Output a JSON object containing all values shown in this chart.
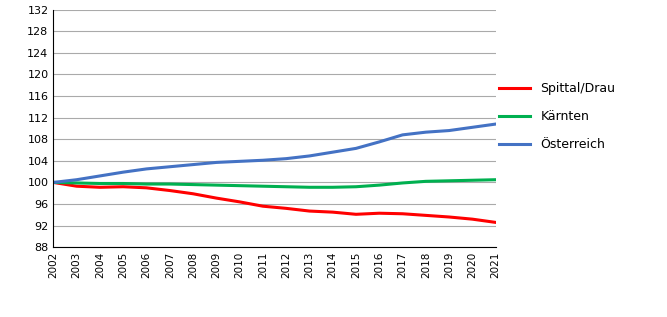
{
  "years": [
    2002,
    2003,
    2004,
    2005,
    2006,
    2007,
    2008,
    2009,
    2010,
    2011,
    2012,
    2013,
    2014,
    2015,
    2016,
    2017,
    2018,
    2019,
    2020,
    2021
  ],
  "spittal": [
    100.0,
    99.3,
    99.1,
    99.2,
    99.0,
    98.5,
    97.9,
    97.1,
    96.4,
    95.6,
    95.2,
    94.7,
    94.5,
    94.1,
    94.3,
    94.2,
    93.9,
    93.6,
    93.2,
    92.6
  ],
  "kaernten": [
    100.0,
    99.9,
    99.8,
    99.8,
    99.7,
    99.7,
    99.6,
    99.5,
    99.4,
    99.3,
    99.2,
    99.1,
    99.1,
    99.2,
    99.5,
    99.9,
    100.2,
    100.3,
    100.4,
    100.5
  ],
  "oesterreich": [
    100.0,
    100.5,
    101.2,
    101.9,
    102.5,
    102.9,
    103.3,
    103.7,
    103.9,
    104.1,
    104.4,
    104.9,
    105.6,
    106.3,
    107.5,
    108.8,
    109.3,
    109.6,
    110.2,
    110.8
  ],
  "spittal_color": "#ff0000",
  "kaernten_color": "#00b050",
  "oesterreich_color": "#4472c4",
  "ylim": [
    88,
    132
  ],
  "yticks": [
    88,
    92,
    96,
    100,
    104,
    108,
    112,
    116,
    120,
    124,
    128,
    132
  ],
  "grid_color": "#aaaaaa",
  "legend_labels": [
    "Spittal/Drau",
    "Kärnten",
    "Österreich"
  ],
  "background_color": "#ffffff",
  "line_width": 2.2
}
